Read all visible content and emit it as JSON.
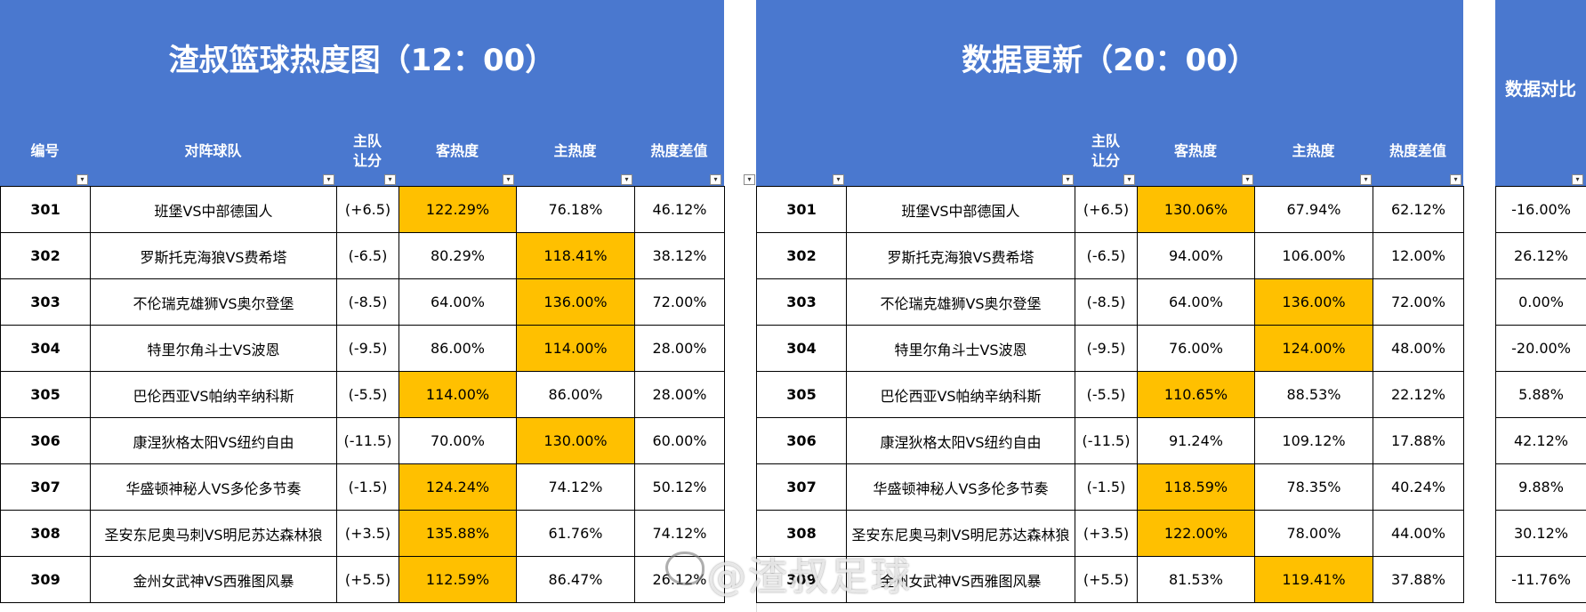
{
  "left": {
    "title": "渣叔篮球热度图（12：00）",
    "headers": [
      "编号",
      "对阵球队",
      "主队\n让分",
      "客热度",
      "主热度",
      "热度差值"
    ],
    "rows": [
      {
        "id": "301",
        "match": "班堡VS中部德国人",
        "spread": "(+6.5)",
        "away": "122.29%",
        "home": "76.18%",
        "diff": "46.12%",
        "hl": "away"
      },
      {
        "id": "302",
        "match": "罗斯托克海狼VS费希塔",
        "spread": "(-6.5)",
        "away": "80.29%",
        "home": "118.41%",
        "diff": "38.12%",
        "hl": "home"
      },
      {
        "id": "303",
        "match": "不伦瑞克雄狮VS奥尔登堡",
        "spread": "(-8.5)",
        "away": "64.00%",
        "home": "136.00%",
        "diff": "72.00%",
        "hl": "home"
      },
      {
        "id": "304",
        "match": "特里尔角斗士VS波恩",
        "spread": "(-9.5)",
        "away": "86.00%",
        "home": "114.00%",
        "diff": "28.00%",
        "hl": "home"
      },
      {
        "id": "305",
        "match": "巴伦西亚VS帕纳辛纳科斯",
        "spread": "(-5.5)",
        "away": "114.00%",
        "home": "86.00%",
        "diff": "28.00%",
        "hl": "away"
      },
      {
        "id": "306",
        "match": "康涅狄格太阳VS纽约自由",
        "spread": "(-11.5)",
        "away": "70.00%",
        "home": "130.00%",
        "diff": "60.00%",
        "hl": "home"
      },
      {
        "id": "307",
        "match": "华盛顿神秘人VS多伦多节奏",
        "spread": "(-1.5)",
        "away": "124.24%",
        "home": "74.12%",
        "diff": "50.12%",
        "hl": "away"
      },
      {
        "id": "308",
        "match": "圣安东尼奥马刺VS明尼苏达森林狼",
        "spread": "(+3.5)",
        "away": "135.88%",
        "home": "61.76%",
        "diff": "74.12%",
        "hl": "away"
      },
      {
        "id": "309",
        "match": "金州女武神VS西雅图风暴",
        "spread": "(+5.5)",
        "away": "112.59%",
        "home": "86.47%",
        "diff": "26.12%",
        "hl": "away"
      }
    ]
  },
  "right": {
    "title": "数据更新（20：00）",
    "headers": [
      "",
      "",
      "主队\n让分",
      "客热度",
      "主热度",
      "热度差值"
    ],
    "rows": [
      {
        "id": "301",
        "match": "班堡VS中部德国人",
        "spread": "(+6.5)",
        "away": "130.06%",
        "home": "67.94%",
        "diff": "62.12%",
        "hl": "away"
      },
      {
        "id": "302",
        "match": "罗斯托克海狼VS费希塔",
        "spread": "(-6.5)",
        "away": "94.00%",
        "home": "106.00%",
        "diff": "12.00%",
        "hl": ""
      },
      {
        "id": "303",
        "match": "不伦瑞克雄狮VS奥尔登堡",
        "spread": "(-8.5)",
        "away": "64.00%",
        "home": "136.00%",
        "diff": "72.00%",
        "hl": "home"
      },
      {
        "id": "304",
        "match": "特里尔角斗士VS波恩",
        "spread": "(-9.5)",
        "away": "76.00%",
        "home": "124.00%",
        "diff": "48.00%",
        "hl": "home"
      },
      {
        "id": "305",
        "match": "巴伦西亚VS帕纳辛纳科斯",
        "spread": "(-5.5)",
        "away": "110.65%",
        "home": "88.53%",
        "diff": "22.12%",
        "hl": "away"
      },
      {
        "id": "306",
        "match": "康涅狄格太阳VS纽约自由",
        "spread": "(-11.5)",
        "away": "91.24%",
        "home": "109.12%",
        "diff": "17.88%",
        "hl": ""
      },
      {
        "id": "307",
        "match": "华盛顿神秘人VS多伦多节奏",
        "spread": "(-1.5)",
        "away": "118.59%",
        "home": "78.35%",
        "diff": "40.24%",
        "hl": "away"
      },
      {
        "id": "308",
        "match": "圣安东尼奥马刺VS明尼苏达森林狼",
        "spread": "(+3.5)",
        "away": "122.00%",
        "home": "78.00%",
        "diff": "44.00%",
        "hl": "away"
      },
      {
        "id": "309",
        "match": "金州女武神VS西雅图风暴",
        "spread": "(+5.5)",
        "away": "81.53%",
        "home": "119.41%",
        "diff": "37.88%",
        "hl": "home"
      }
    ]
  },
  "compare": {
    "title": "数据对比",
    "values": [
      "-16.00%",
      "26.12%",
      "0.00%",
      "-20.00%",
      "5.88%",
      "42.12%",
      "9.88%",
      "30.12%",
      "-11.76%"
    ]
  },
  "watermark": "@渣叔足球",
  "colors": {
    "header_bg": "#4a78cf",
    "highlight": "#ffc000"
  }
}
